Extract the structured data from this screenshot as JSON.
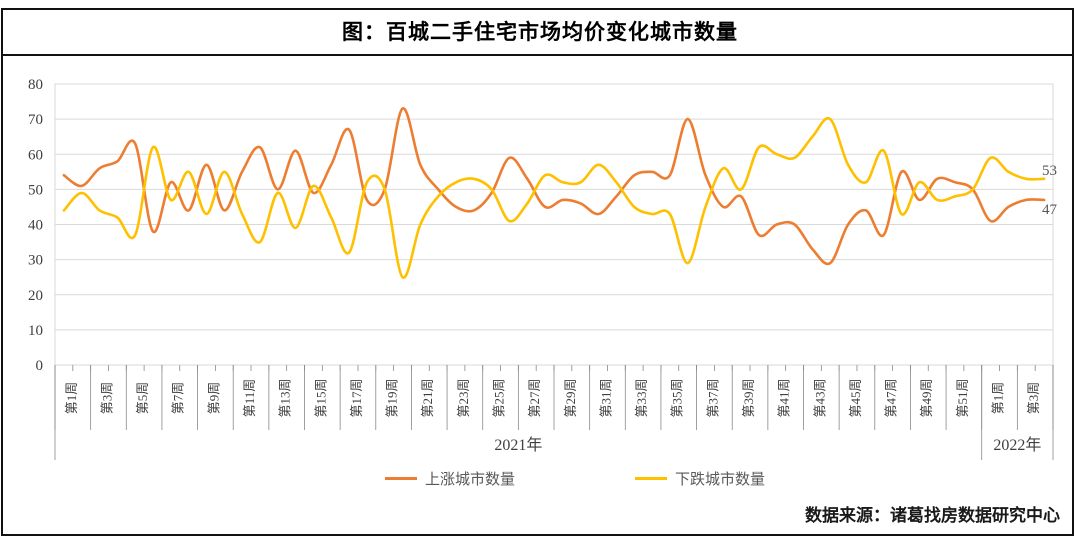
{
  "title": "图：百城二手住宅市场均价变化城市数量",
  "source": "数据来源：诸葛找房数据研究中心",
  "legend": {
    "rising": "上涨城市数量",
    "falling": "下跌城市数量"
  },
  "colors": {
    "rising": "#ED7D31",
    "falling": "#FFC000",
    "grid": "#D9D9D9",
    "plot_border": "#D9D9D9",
    "axis_line": "#898989",
    "axis_text": "#3f3f3f",
    "legend_text": "#595959",
    "end_label_text": "#595959",
    "frame": "#111111"
  },
  "end_labels": {
    "falling": "53",
    "rising": "47"
  },
  "chart_data": {
    "type": "line",
    "title": "图：百城二手住宅市场均价变化城市数量",
    "ylim": [
      0,
      80
    ],
    "y_ticks": [
      "0",
      "10",
      "20",
      "30",
      "40",
      "50",
      "60",
      "70",
      "80"
    ],
    "grid": true,
    "legend_position": "bottom",
    "smooth": true,
    "x_axis": {
      "years": [
        {
          "label": "2021年",
          "weeks": 52
        },
        {
          "label": "2022年",
          "weeks": 4
        }
      ],
      "tick_labels": [
        "第1周",
        "第3周",
        "第5周",
        "第7周",
        "第9周",
        "第11周",
        "第13周",
        "第15周",
        "第17周",
        "第19周",
        "第21周",
        "第23周",
        "第25周",
        "第27周",
        "第29周",
        "第31周",
        "第33周",
        "第35周",
        "第37周",
        "第39周",
        "第41周",
        "第43周",
        "第45周",
        "第47周",
        "第49周",
        "第51周",
        "第1周",
        "第3周"
      ]
    },
    "series": [
      {
        "name": "上涨城市数量",
        "color": "#ED7D31",
        "values": [
          54,
          51,
          56,
          58,
          63,
          38,
          52,
          44,
          57,
          44,
          55,
          62,
          50,
          61,
          49,
          57,
          67,
          47,
          50,
          73,
          57,
          50,
          45,
          44,
          49,
          59,
          53,
          45,
          47,
          46,
          43,
          48,
          54,
          55,
          54,
          70,
          54,
          45,
          48,
          37,
          40,
          40,
          33,
          29,
          40,
          44,
          37,
          55,
          47,
          53,
          52,
          50,
          41,
          45,
          47,
          47
        ]
      },
      {
        "name": "下跌城市数量",
        "color": "#FFC000",
        "values": [
          44,
          49,
          44,
          42,
          37,
          62,
          47,
          55,
          43,
          55,
          43,
          35,
          49,
          39,
          51,
          42,
          32,
          52,
          50,
          25,
          40,
          48,
          52,
          53,
          50,
          41,
          46,
          54,
          52,
          52,
          57,
          52,
          45,
          43,
          43,
          29,
          45,
          56,
          50,
          62,
          60,
          59,
          65,
          70,
          57,
          52,
          61,
          43,
          52,
          47,
          48,
          50,
          59,
          55,
          53,
          53
        ]
      }
    ]
  }
}
